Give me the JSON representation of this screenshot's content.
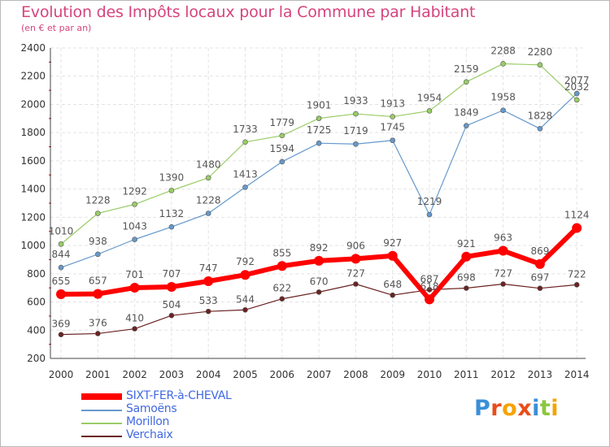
{
  "title": "Evolution des Impôts locaux pour la Commune par Habitant",
  "subtitle": "(en € et par an)",
  "chart_data": {
    "type": "line",
    "x": [
      "2000",
      "2001",
      "2002",
      "2003",
      "2004",
      "2005",
      "2006",
      "2007",
      "2008",
      "2009",
      "2010",
      "2011",
      "2012",
      "2013",
      "2014"
    ],
    "ylim": [
      200,
      2400
    ],
    "yticks": [
      200,
      400,
      600,
      800,
      1000,
      1200,
      1400,
      1600,
      1800,
      2000,
      2200,
      2400
    ],
    "grid": true,
    "legend_position": "bottom-left",
    "series": [
      {
        "name": "SIXT-FER-à-CHEVAL",
        "color": "#ff0000",
        "values": [
          655,
          657,
          701,
          707,
          747,
          792,
          855,
          892,
          906,
          927,
          618,
          921,
          963,
          869,
          1124
        ]
      },
      {
        "name": "Samoëns",
        "color": "#6699cc",
        "values": [
          844,
          938,
          1043,
          1132,
          1228,
          1413,
          1594,
          1725,
          1719,
          1745,
          1219,
          1849,
          1958,
          1828,
          2077
        ]
      },
      {
        "name": "Morillon",
        "color": "#99cc66",
        "values": [
          1010,
          1228,
          1292,
          1390,
          1480,
          1733,
          1779,
          1901,
          1933,
          1913,
          1954,
          2159,
          2288,
          2280,
          2032
        ]
      },
      {
        "name": "Verchaix",
        "color": "#6b2222",
        "values": [
          369,
          376,
          410,
          504,
          533,
          544,
          622,
          670,
          727,
          648,
          687,
          698,
          727,
          697,
          722
        ]
      }
    ]
  },
  "logo": {
    "letters": [
      {
        "ch": "P",
        "color": "#3a8fd9"
      },
      {
        "ch": "r",
        "color": "#e94e1b"
      },
      {
        "ch": "o",
        "color": "#f5a300"
      },
      {
        "ch": "x",
        "color": "#e94e1b"
      },
      {
        "ch": "i",
        "color": "#3a8fd9"
      },
      {
        "ch": "t",
        "color": "#8cc63f"
      },
      {
        "ch": "i",
        "color": "#f5a300"
      }
    ]
  }
}
